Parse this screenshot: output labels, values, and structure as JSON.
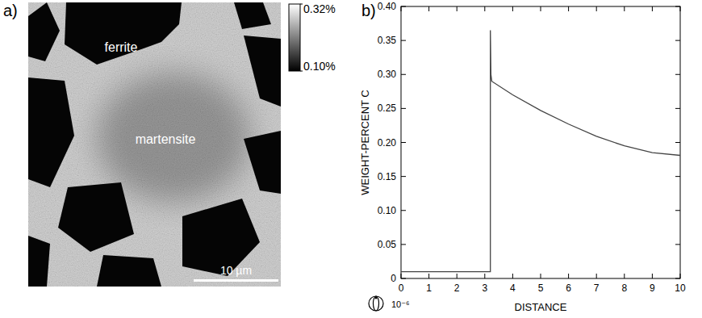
{
  "chart_data": [
    {
      "type": "image",
      "panel": "a)",
      "annotations": [
        "ferrite",
        "martensite"
      ],
      "colorbar": {
        "range": [
          0.1,
          0.32
        ],
        "ticks": [
          {
            "value": 0.32,
            "label": "0.32%"
          },
          {
            "value": 0.1,
            "label": "0.10%"
          }
        ]
      },
      "scale_bar": {
        "value": 10,
        "label": "10 µm"
      }
    },
    {
      "type": "line",
      "panel": "b)",
      "x_label": "DISTANCE",
      "y_label": "WEIGHT-PERCENT C",
      "annotations": [
        "10⁻⁶"
      ],
      "x": [
        0,
        3.2,
        3.2,
        3.22,
        3.25,
        4,
        5,
        6,
        7,
        8,
        9,
        10
      ],
      "values": [
        0.01,
        0.01,
        0.365,
        0.3,
        0.29,
        0.27,
        0.247,
        0.227,
        0.209,
        0.195,
        0.185,
        0.181
      ],
      "color": "#444444",
      "xlim": [
        0,
        10
      ],
      "xticks": [
        0,
        1,
        2,
        3,
        4,
        5,
        6,
        7,
        8,
        9,
        10
      ],
      "ylim": [
        0,
        0.4
      ],
      "yticks": [
        0,
        0.05,
        {
          "value": 0.1,
          "label": "0.10"
        },
        0.15,
        {
          "value": 0.2,
          "label": "0.20"
        },
        0.25,
        {
          "value": 0.3,
          "label": "0.30"
        },
        0.35,
        {
          "value": 0.4,
          "label": "0.40"
        }
      ]
    }
  ]
}
